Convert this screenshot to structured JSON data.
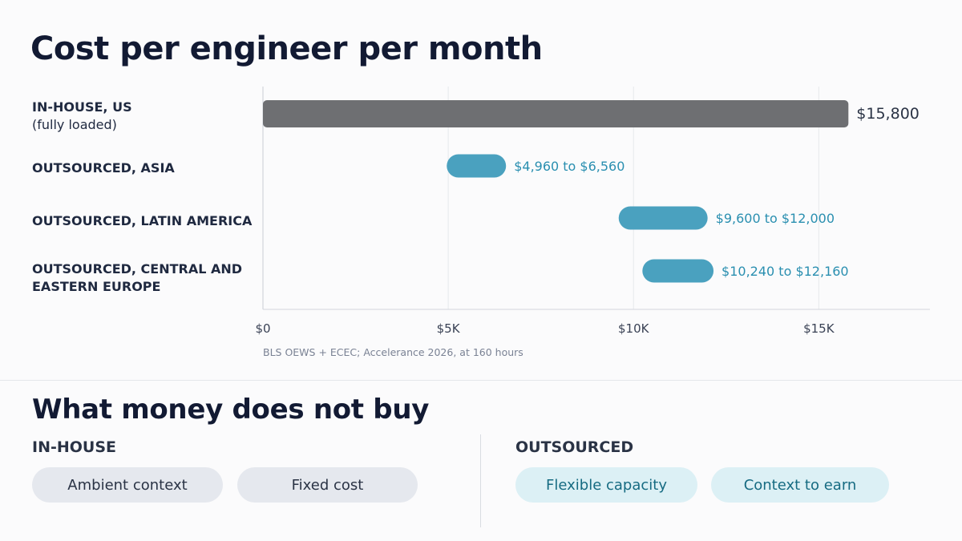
{
  "title": "Cost per engineer per month",
  "chart_data": {
    "type": "bar",
    "orientation": "horizontal-range",
    "categories": [
      {
        "main": "IN-HOUSE, US",
        "sub": "(fully loaded)"
      },
      {
        "main": "OUTSOURCED, ASIA",
        "sub": ""
      },
      {
        "main": "OUTSOURCED, LATIN AMERICA",
        "sub": ""
      },
      {
        "main": "OUTSOURCED, CENTRAL AND EASTERN EUROPE",
        "sub": ""
      }
    ],
    "ranges": [
      {
        "low": 0,
        "high": 15800,
        "label": "$15,800",
        "color": "#6e6f72"
      },
      {
        "low": 4960,
        "high": 6560,
        "label": "$4,960 to $6,560",
        "color": "#4aa1bf"
      },
      {
        "low": 9600,
        "high": 12000,
        "label": "$9,600 to $12,000",
        "color": "#4aa1bf"
      },
      {
        "low": 10240,
        "high": 12160,
        "label": "$10,240 to $12,160",
        "color": "#4aa1bf"
      }
    ],
    "xticks": [
      0,
      5000,
      10000,
      15000
    ],
    "xtick_labels": [
      "$0",
      "$5K",
      "$10K",
      "$15K"
    ],
    "xlim": [
      0,
      18000
    ],
    "grid": true,
    "source": "BLS OEWS + ECEC; Accelerance 2026, at 160 hours"
  },
  "section2": {
    "title": "What money does not buy",
    "inhouse": {
      "label": "IN-HOUSE",
      "pills": [
        "Ambient context",
        "Fixed cost"
      ]
    },
    "outsourced": {
      "label": "OUTSOURCED",
      "pills": [
        "Flexible capacity",
        "Context to earn"
      ]
    }
  },
  "colors": {
    "inhouse_bar": "#6e6f72",
    "outsourced_bar": "#4aa1bf",
    "outsourced_label": "#2a8fb0",
    "gray_pill": "#e5e8ee",
    "teal_pill": "#dcf0f5"
  }
}
